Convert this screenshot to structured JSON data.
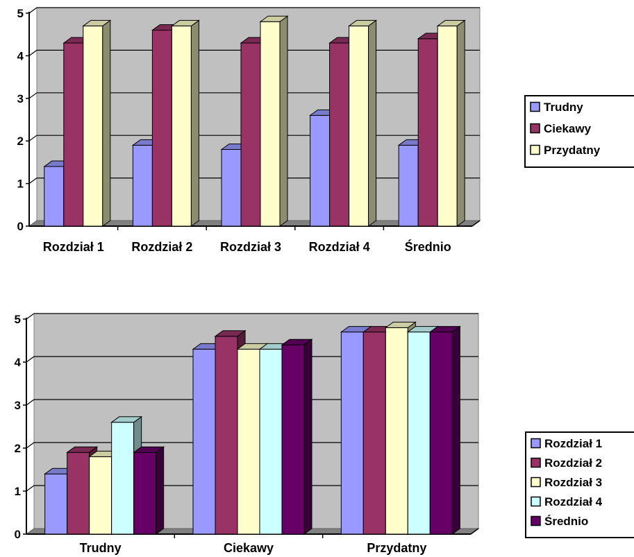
{
  "chart_data": [
    {
      "type": "bar",
      "categories": [
        "Rozdział 1",
        "Rozdział 2",
        "Rozdział 3",
        "Rozdział 4",
        "Średnio"
      ],
      "series": [
        {
          "name": "Trudny",
          "values": [
            1.4,
            1.9,
            1.8,
            2.6,
            1.9
          ]
        },
        {
          "name": "Ciekawy",
          "values": [
            4.3,
            4.6,
            4.3,
            4.3,
            4.4
          ]
        },
        {
          "name": "Przydatny",
          "values": [
            4.7,
            4.7,
            4.8,
            4.7,
            4.7
          ]
        }
      ],
      "ylim": [
        0,
        5
      ],
      "yticks": [
        "0",
        "1",
        "2",
        "3",
        "4",
        "5"
      ],
      "grid": true,
      "legend": "right",
      "style": "3d-clustered-bar",
      "colors": [
        "#9999ff",
        "#993366",
        "#ffffcc"
      ]
    },
    {
      "type": "bar",
      "categories": [
        "Trudny",
        "Ciekawy",
        "Przydatny"
      ],
      "series": [
        {
          "name": "Rozdział 1",
          "values": [
            1.4,
            4.3,
            4.7
          ]
        },
        {
          "name": "Rozdział 2",
          "values": [
            1.9,
            4.6,
            4.7
          ]
        },
        {
          "name": "Rozdział 3",
          "values": [
            1.8,
            4.3,
            4.8
          ]
        },
        {
          "name": "Rozdział 4",
          "values": [
            2.6,
            4.3,
            4.7
          ]
        },
        {
          "name": "Średnio",
          "values": [
            1.9,
            4.4,
            4.7
          ]
        }
      ],
      "ylim": [
        0,
        5
      ],
      "yticks": [
        "0",
        "1",
        "2",
        "3",
        "4",
        "5"
      ],
      "grid": true,
      "legend": "right",
      "style": "3d-clustered-bar",
      "colors": [
        "#9999ff",
        "#993366",
        "#ffffcc",
        "#ccffff",
        "#660066"
      ]
    }
  ],
  "plot_colors": {
    "wall": "#c0c0c0",
    "floor": "#808080",
    "gridline": "#000000"
  }
}
